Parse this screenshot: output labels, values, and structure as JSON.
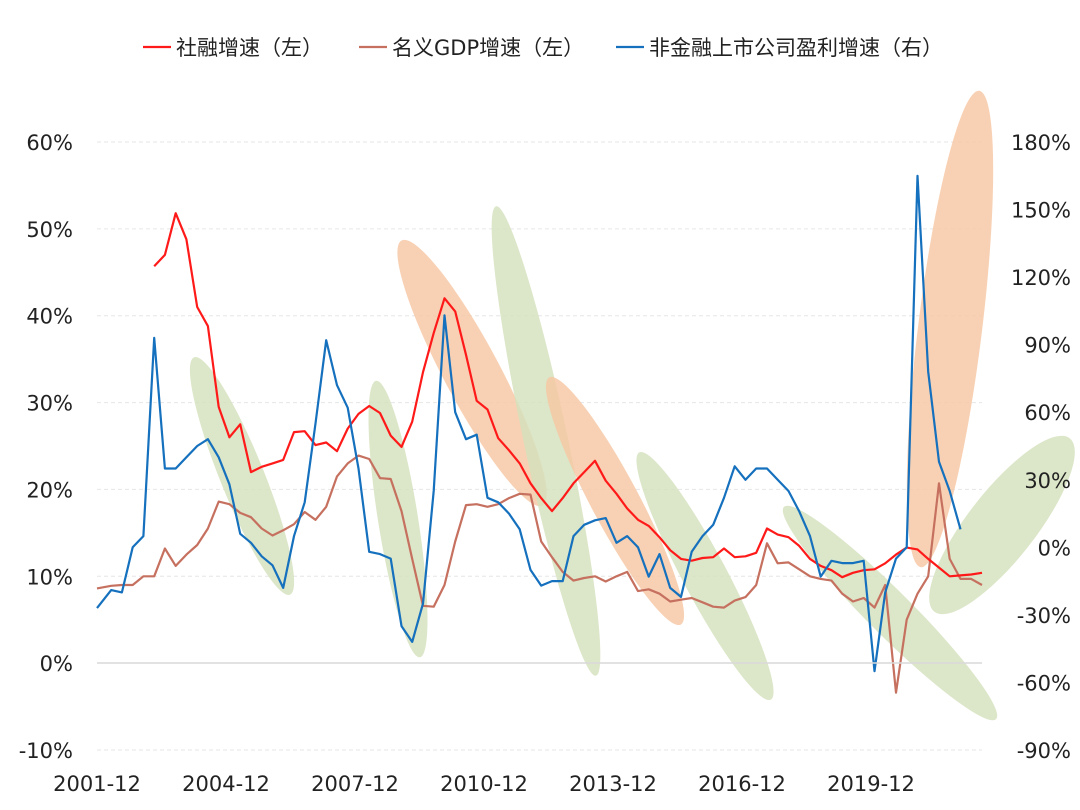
{
  "chart_data": {
    "type": "line",
    "title": "",
    "xlabel": "",
    "ylabel_left": "",
    "ylabel_right": "",
    "x_tick_labels": [
      "2001-12",
      "2004-12",
      "2007-12",
      "2010-12",
      "2013-12",
      "2016-12",
      "2019-12"
    ],
    "y_left": {
      "min": -0.1,
      "max": 0.6,
      "ticks": [
        "-10%",
        "0%",
        "10%",
        "20%",
        "30%",
        "40%",
        "50%",
        "60%"
      ]
    },
    "y_right": {
      "min": -0.9,
      "max": 1.8,
      "ticks": [
        "-90%",
        "-60%",
        "-30%",
        "0%",
        "30%",
        "60%",
        "90%",
        "120%",
        "150%",
        "180%"
      ]
    },
    "x_range": [
      2001.92,
      2022.5
    ],
    "grid": "horizontal dashed",
    "legend_position": "top",
    "series": [
      {
        "name": "社融增速（左）",
        "axis": "left",
        "color": "#ff1a1a",
        "points": [
          [
            2003.25,
            0.457
          ],
          [
            2003.5,
            0.47
          ],
          [
            2003.75,
            0.518
          ],
          [
            2004.0,
            0.488
          ],
          [
            2004.25,
            0.41
          ],
          [
            2004.5,
            0.388
          ],
          [
            2004.75,
            0.295
          ],
          [
            2005.0,
            0.26
          ],
          [
            2005.25,
            0.275
          ],
          [
            2005.5,
            0.22
          ],
          [
            2005.75,
            0.226
          ],
          [
            2006.0,
            0.23
          ],
          [
            2006.25,
            0.234
          ],
          [
            2006.5,
            0.266
          ],
          [
            2006.75,
            0.267
          ],
          [
            2007.0,
            0.251
          ],
          [
            2007.25,
            0.254
          ],
          [
            2007.5,
            0.244
          ],
          [
            2007.75,
            0.27
          ],
          [
            2008.0,
            0.287
          ],
          [
            2008.25,
            0.296
          ],
          [
            2008.5,
            0.288
          ],
          [
            2008.75,
            0.262
          ],
          [
            2009.0,
            0.249
          ],
          [
            2009.25,
            0.278
          ],
          [
            2009.5,
            0.335
          ],
          [
            2009.75,
            0.38
          ],
          [
            2010.0,
            0.42
          ],
          [
            2010.25,
            0.405
          ],
          [
            2010.5,
            0.355
          ],
          [
            2010.75,
            0.302
          ],
          [
            2011.0,
            0.292
          ],
          [
            2011.25,
            0.259
          ],
          [
            2011.5,
            0.245
          ],
          [
            2011.75,
            0.23
          ],
          [
            2012.0,
            0.207
          ],
          [
            2012.25,
            0.19
          ],
          [
            2012.5,
            0.175
          ],
          [
            2012.75,
            0.19
          ],
          [
            2013.0,
            0.207
          ],
          [
            2013.25,
            0.22
          ],
          [
            2013.5,
            0.233
          ],
          [
            2013.75,
            0.21
          ],
          [
            2014.0,
            0.195
          ],
          [
            2014.25,
            0.178
          ],
          [
            2014.5,
            0.165
          ],
          [
            2014.75,
            0.158
          ],
          [
            2015.0,
            0.145
          ],
          [
            2015.25,
            0.13
          ],
          [
            2015.5,
            0.12
          ],
          [
            2015.75,
            0.118
          ],
          [
            2016.0,
            0.121
          ],
          [
            2016.25,
            0.122
          ],
          [
            2016.5,
            0.132
          ],
          [
            2016.75,
            0.122
          ],
          [
            2017.0,
            0.123
          ],
          [
            2017.25,
            0.127
          ],
          [
            2017.5,
            0.155
          ],
          [
            2017.75,
            0.148
          ],
          [
            2018.0,
            0.145
          ],
          [
            2018.25,
            0.135
          ],
          [
            2018.5,
            0.12
          ],
          [
            2018.75,
            0.112
          ],
          [
            2019.0,
            0.107
          ],
          [
            2019.25,
            0.099
          ],
          [
            2019.5,
            0.104
          ],
          [
            2019.75,
            0.107
          ],
          [
            2020.0,
            0.108
          ],
          [
            2020.25,
            0.115
          ],
          [
            2020.5,
            0.125
          ],
          [
            2020.75,
            0.133
          ],
          [
            2021.0,
            0.131
          ],
          [
            2021.25,
            0.12
          ],
          [
            2021.5,
            0.11
          ],
          [
            2021.75,
            0.1
          ],
          [
            2022.0,
            0.101
          ],
          [
            2022.25,
            0.102
          ],
          [
            2022.5,
            0.104
          ]
        ]
      },
      {
        "name": "名义GDP增速（左）",
        "axis": "left",
        "color": "#c6705f",
        "points": [
          [
            2001.92,
            0.086
          ],
          [
            2002.25,
            0.089
          ],
          [
            2002.5,
            0.09
          ],
          [
            2002.75,
            0.09
          ],
          [
            2003.0,
            0.1
          ],
          [
            2003.25,
            0.1
          ],
          [
            2003.5,
            0.132
          ],
          [
            2003.75,
            0.112
          ],
          [
            2004.0,
            0.125
          ],
          [
            2004.25,
            0.136
          ],
          [
            2004.5,
            0.155
          ],
          [
            2004.75,
            0.186
          ],
          [
            2005.0,
            0.183
          ],
          [
            2005.25,
            0.173
          ],
          [
            2005.5,
            0.168
          ],
          [
            2005.75,
            0.155
          ],
          [
            2006.0,
            0.147
          ],
          [
            2006.25,
            0.153
          ],
          [
            2006.5,
            0.16
          ],
          [
            2006.75,
            0.174
          ],
          [
            2007.0,
            0.165
          ],
          [
            2007.25,
            0.18
          ],
          [
            2007.5,
            0.215
          ],
          [
            2007.75,
            0.23
          ],
          [
            2008.0,
            0.239
          ],
          [
            2008.25,
            0.235
          ],
          [
            2008.5,
            0.213
          ],
          [
            2008.75,
            0.212
          ],
          [
            2009.0,
            0.175
          ],
          [
            2009.25,
            0.12
          ],
          [
            2009.5,
            0.066
          ],
          [
            2009.75,
            0.065
          ],
          [
            2010.0,
            0.09
          ],
          [
            2010.25,
            0.14
          ],
          [
            2010.5,
            0.182
          ],
          [
            2010.75,
            0.183
          ],
          [
            2011.0,
            0.18
          ],
          [
            2011.25,
            0.183
          ],
          [
            2011.5,
            0.19
          ],
          [
            2011.75,
            0.195
          ],
          [
            2012.0,
            0.194
          ],
          [
            2012.25,
            0.14
          ],
          [
            2012.5,
            0.122
          ],
          [
            2012.75,
            0.105
          ],
          [
            2013.0,
            0.095
          ],
          [
            2013.25,
            0.098
          ],
          [
            2013.5,
            0.1
          ],
          [
            2013.75,
            0.094
          ],
          [
            2014.0,
            0.1
          ],
          [
            2014.25,
            0.105
          ],
          [
            2014.5,
            0.083
          ],
          [
            2014.75,
            0.085
          ],
          [
            2015.0,
            0.08
          ],
          [
            2015.25,
            0.071
          ],
          [
            2015.5,
            0.073
          ],
          [
            2015.75,
            0.075
          ],
          [
            2016.0,
            0.07
          ],
          [
            2016.25,
            0.065
          ],
          [
            2016.5,
            0.064
          ],
          [
            2016.75,
            0.072
          ],
          [
            2017.0,
            0.076
          ],
          [
            2017.25,
            0.09
          ],
          [
            2017.5,
            0.138
          ],
          [
            2017.75,
            0.115
          ],
          [
            2018.0,
            0.116
          ],
          [
            2018.25,
            0.108
          ],
          [
            2018.5,
            0.1
          ],
          [
            2018.75,
            0.097
          ],
          [
            2019.0,
            0.095
          ],
          [
            2019.25,
            0.08
          ],
          [
            2019.5,
            0.071
          ],
          [
            2019.75,
            0.075
          ],
          [
            2020.0,
            0.064
          ],
          [
            2020.25,
            0.09
          ],
          [
            2020.5,
            -0.034
          ],
          [
            2020.75,
            0.05
          ],
          [
            2021.0,
            0.08
          ],
          [
            2021.25,
            0.1
          ],
          [
            2021.5,
            0.207
          ],
          [
            2021.75,
            0.12
          ],
          [
            2022.0,
            0.097
          ],
          [
            2022.25,
            0.097
          ],
          [
            2022.5,
            0.09
          ]
        ]
      },
      {
        "name": "非金融上市公司盈利增速（右）",
        "axis": "right",
        "color": "#1570bd",
        "points": [
          [
            2001.92,
            -0.27
          ],
          [
            2002.25,
            -0.19
          ],
          [
            2002.5,
            -0.2
          ],
          [
            2002.75,
            0.0
          ],
          [
            2003.0,
            0.05
          ],
          [
            2003.25,
            0.93
          ],
          [
            2003.5,
            0.35
          ],
          [
            2003.75,
            0.35
          ],
          [
            2004.0,
            0.4
          ],
          [
            2004.25,
            0.45
          ],
          [
            2004.5,
            0.48
          ],
          [
            2004.75,
            0.4
          ],
          [
            2005.0,
            0.28
          ],
          [
            2005.25,
            0.06
          ],
          [
            2005.5,
            0.02
          ],
          [
            2005.75,
            -0.04
          ],
          [
            2006.0,
            -0.08
          ],
          [
            2006.25,
            -0.18
          ],
          [
            2006.5,
            0.05
          ],
          [
            2006.75,
            0.2
          ],
          [
            2007.0,
            0.55
          ],
          [
            2007.25,
            0.92
          ],
          [
            2007.5,
            0.72
          ],
          [
            2007.75,
            0.62
          ],
          [
            2008.0,
            0.35
          ],
          [
            2008.25,
            -0.02
          ],
          [
            2008.5,
            -0.03
          ],
          [
            2008.75,
            -0.05
          ],
          [
            2009.0,
            -0.35
          ],
          [
            2009.25,
            -0.42
          ],
          [
            2009.5,
            -0.25
          ],
          [
            2009.75,
            0.25
          ],
          [
            2010.0,
            1.03
          ],
          [
            2010.25,
            0.6
          ],
          [
            2010.5,
            0.48
          ],
          [
            2010.75,
            0.5
          ],
          [
            2011.0,
            0.22
          ],
          [
            2011.25,
            0.2
          ],
          [
            2011.5,
            0.15
          ],
          [
            2011.75,
            0.08
          ],
          [
            2012.0,
            -0.1
          ],
          [
            2012.25,
            -0.17
          ],
          [
            2012.5,
            -0.15
          ],
          [
            2012.75,
            -0.15
          ],
          [
            2013.0,
            0.05
          ],
          [
            2013.25,
            0.1
          ],
          [
            2013.5,
            0.12
          ],
          [
            2013.75,
            0.13
          ],
          [
            2014.0,
            0.02
          ],
          [
            2014.25,
            0.05
          ],
          [
            2014.5,
            0.0
          ],
          [
            2014.75,
            -0.13
          ],
          [
            2015.0,
            -0.03
          ],
          [
            2015.25,
            -0.18
          ],
          [
            2015.5,
            -0.22
          ],
          [
            2015.75,
            -0.02
          ],
          [
            2016.0,
            0.05
          ],
          [
            2016.25,
            0.1
          ],
          [
            2016.5,
            0.22
          ],
          [
            2016.75,
            0.36
          ],
          [
            2017.0,
            0.3
          ],
          [
            2017.25,
            0.35
          ],
          [
            2017.5,
            0.35
          ],
          [
            2017.75,
            0.3
          ],
          [
            2018.0,
            0.25
          ],
          [
            2018.25,
            0.16
          ],
          [
            2018.5,
            0.05
          ],
          [
            2018.75,
            -0.13
          ],
          [
            2019.0,
            -0.06
          ],
          [
            2019.25,
            -0.07
          ],
          [
            2019.5,
            -0.07
          ],
          [
            2019.75,
            -0.06
          ],
          [
            2020.0,
            -0.55
          ],
          [
            2020.25,
            -0.2
          ],
          [
            2020.5,
            -0.05
          ],
          [
            2020.75,
            0.0
          ],
          [
            2021.0,
            1.65
          ],
          [
            2021.25,
            0.78
          ],
          [
            2021.5,
            0.38
          ],
          [
            2021.75,
            0.25
          ],
          [
            2022.0,
            0.08
          ]
        ]
      }
    ],
    "highlight_colors": {
      "orange": "#f7c7a3",
      "green": "#d4e1bc"
    }
  }
}
